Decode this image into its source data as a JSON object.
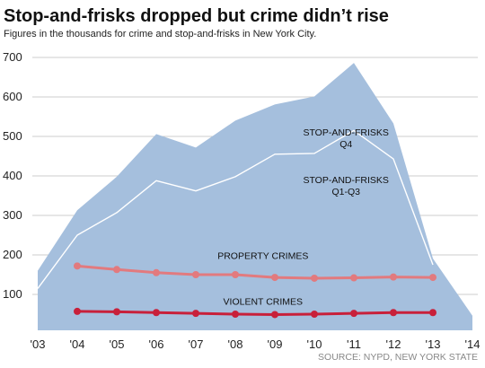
{
  "chart_data": {
    "type": "area",
    "title": "Stop-and-frisks dropped but crime didn’t rise",
    "subtitle": "Figures in the thousands for crime and stop-and-frisks in New York City.",
    "source": "SOURCE: NYPD, NEW YORK STATE",
    "x_ticks": [
      "'03",
      "'04",
      "'05",
      "'06",
      "'07",
      "'08",
      "'09",
      "'10",
      "'11",
      "'12",
      "'13",
      "'14"
    ],
    "x_values": [
      2003,
      2004,
      2005,
      2006,
      2007,
      2008,
      2009,
      2010,
      2011,
      2012,
      2013,
      2014
    ],
    "y_ticks": [
      100,
      200,
      300,
      400,
      500,
      600,
      700
    ],
    "ylim": [
      30,
      720
    ],
    "grid": true,
    "series": [
      {
        "name": "STOP-AND-FRISKS Q4",
        "label_lines": [
          "STOP-AND-FRISKS",
          "Q4"
        ],
        "kind": "area",
        "color": "#a5bfdd",
        "x": [
          2003,
          2004,
          2005,
          2006,
          2007,
          2008,
          2009,
          2010,
          2011,
          2012,
          2013,
          2014
        ],
        "values": [
          160,
          313,
          398,
          506,
          472,
          540,
          581,
          601,
          686,
          533,
          191,
          46
        ]
      },
      {
        "name": "STOP-AND-FRISKS Q1-Q3",
        "label_lines": [
          "STOP-AND-FRISKS",
          "Q1-Q3"
        ],
        "kind": "line",
        "color": "#ffffff",
        "x": [
          2003,
          2004,
          2005,
          2006,
          2007,
          2008,
          2009,
          2010,
          2011,
          2012,
          2013
        ],
        "values": [
          115,
          250,
          307,
          388,
          362,
          398,
          455,
          457,
          515,
          443,
          175
        ]
      },
      {
        "name": "PROPERTY CRIMES",
        "label_lines": [
          "PROPERTY CRIMES"
        ],
        "kind": "line-markers",
        "color": "#e27a7e",
        "x": [
          2004,
          2005,
          2006,
          2007,
          2008,
          2009,
          2010,
          2011,
          2012,
          2013
        ],
        "values": [
          172,
          163,
          155,
          150,
          150,
          143,
          141,
          142,
          144,
          143
        ]
      },
      {
        "name": "VIOLENT CRIMES",
        "label_lines": [
          "VIOLENT CRIMES"
        ],
        "kind": "line-markers",
        "color": "#c8203a",
        "x": [
          2004,
          2005,
          2006,
          2007,
          2008,
          2009,
          2010,
          2011,
          2012,
          2013
        ],
        "values": [
          57,
          56,
          54,
          52,
          50,
          49,
          50,
          52,
          54,
          54
        ]
      }
    ],
    "annotations": [
      {
        "series": 0,
        "x": 2010.8,
        "y": 502
      },
      {
        "series": 1,
        "x": 2010.8,
        "y": 382
      },
      {
        "series": 2,
        "x": 2008.7,
        "y": 190
      },
      {
        "series": 3,
        "x": 2008.7,
        "y": 74
      }
    ]
  }
}
